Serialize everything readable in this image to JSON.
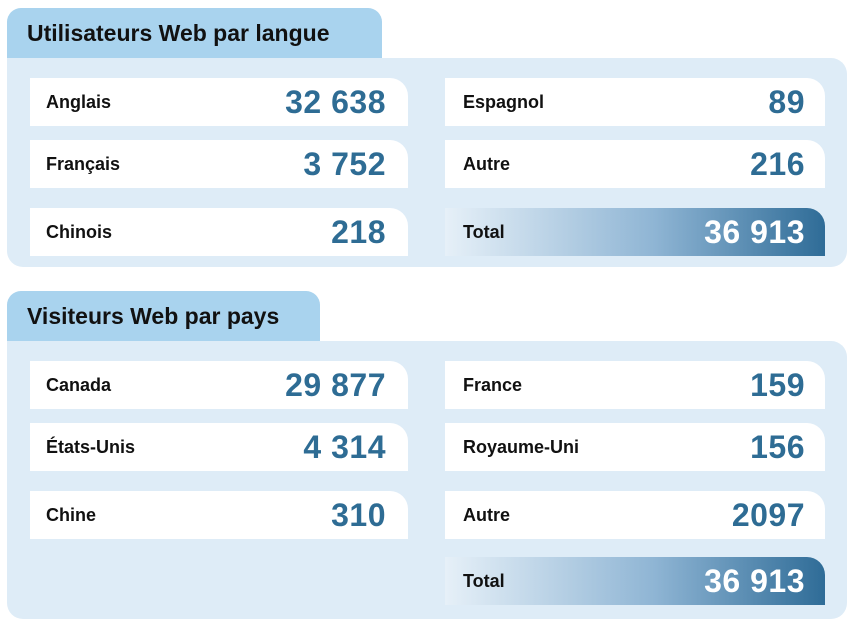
{
  "language": {
    "title": "Utilisateurs Web par langue",
    "left": [
      {
        "label": "Anglais",
        "value": "32 638"
      },
      {
        "label": "Français",
        "value": "3 752"
      },
      {
        "label": "Chinois",
        "value": "218"
      }
    ],
    "right": [
      {
        "label": "Espagnol",
        "value": "89"
      },
      {
        "label": "Autre",
        "value": "216"
      }
    ],
    "total": {
      "label": "Total",
      "value": "36 913"
    }
  },
  "country": {
    "title": "Visiteurs Web par pays",
    "left": [
      {
        "label": "Canada",
        "value": "29 877"
      },
      {
        "label": "États-Unis",
        "value": "4 314"
      },
      {
        "label": "Chine",
        "value": "310"
      }
    ],
    "right": [
      {
        "label": "France",
        "value": "159"
      },
      {
        "label": "Royaume-Uni",
        "value": "156"
      },
      {
        "label": "Autre",
        "value": "2097"
      }
    ],
    "total": {
      "label": "Total",
      "value": "36 913"
    }
  }
}
